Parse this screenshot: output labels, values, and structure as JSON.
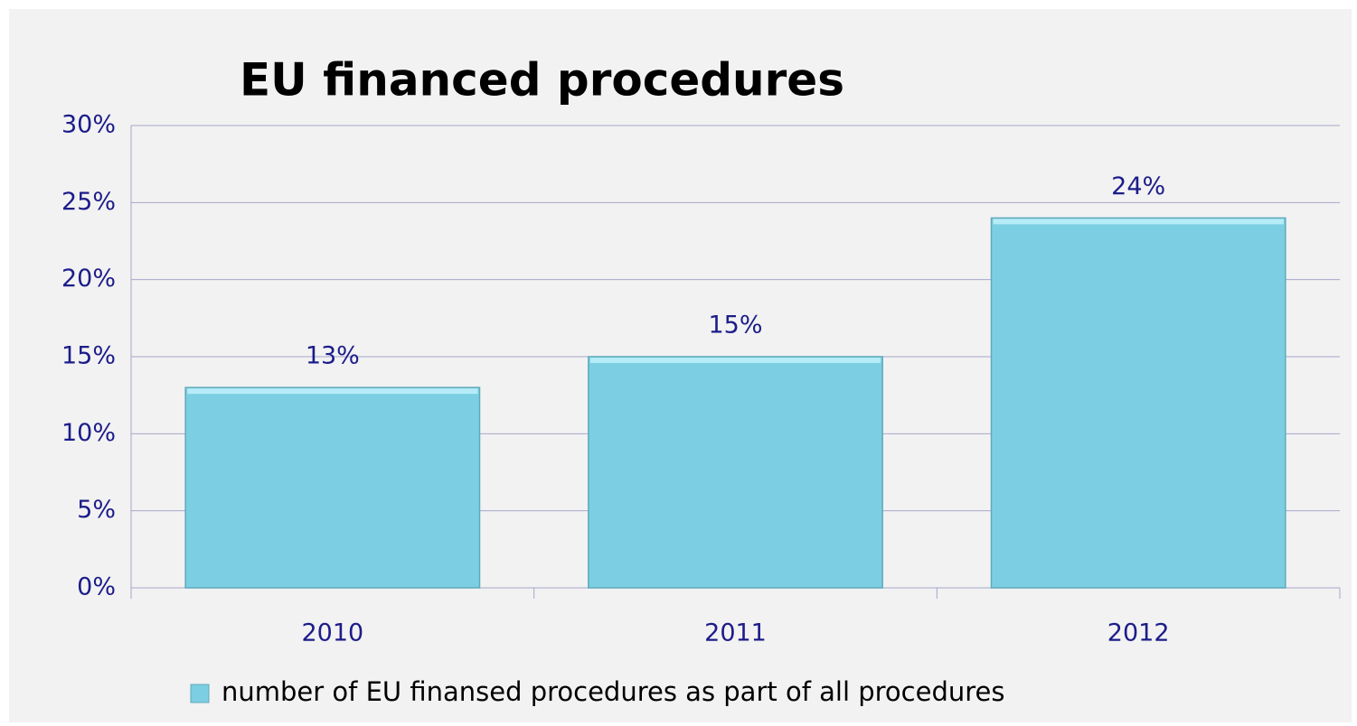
{
  "chart_data": {
    "type": "bar",
    "title": "EU financed procedures",
    "categories": [
      "2010",
      "2011",
      "2012"
    ],
    "series": [
      {
        "name": "number of EU finansed procedures as part of all procedures",
        "color": "#7ccfe2",
        "values": [
          13,
          15,
          24
        ],
        "value_labels": [
          "13%",
          "15%",
          "24%"
        ]
      }
    ],
    "ylim": [
      0,
      30
    ],
    "yticks": [
      {
        "value": 0,
        "label": "0%"
      },
      {
        "value": 5,
        "label": "5%"
      },
      {
        "value": 10,
        "label": "10%"
      },
      {
        "value": 15,
        "label": "15%"
      },
      {
        "value": 20,
        "label": "20%"
      },
      {
        "value": 25,
        "label": "25%"
      },
      {
        "value": 30,
        "label": "30%"
      }
    ],
    "grid": true,
    "legend": "bottom"
  }
}
